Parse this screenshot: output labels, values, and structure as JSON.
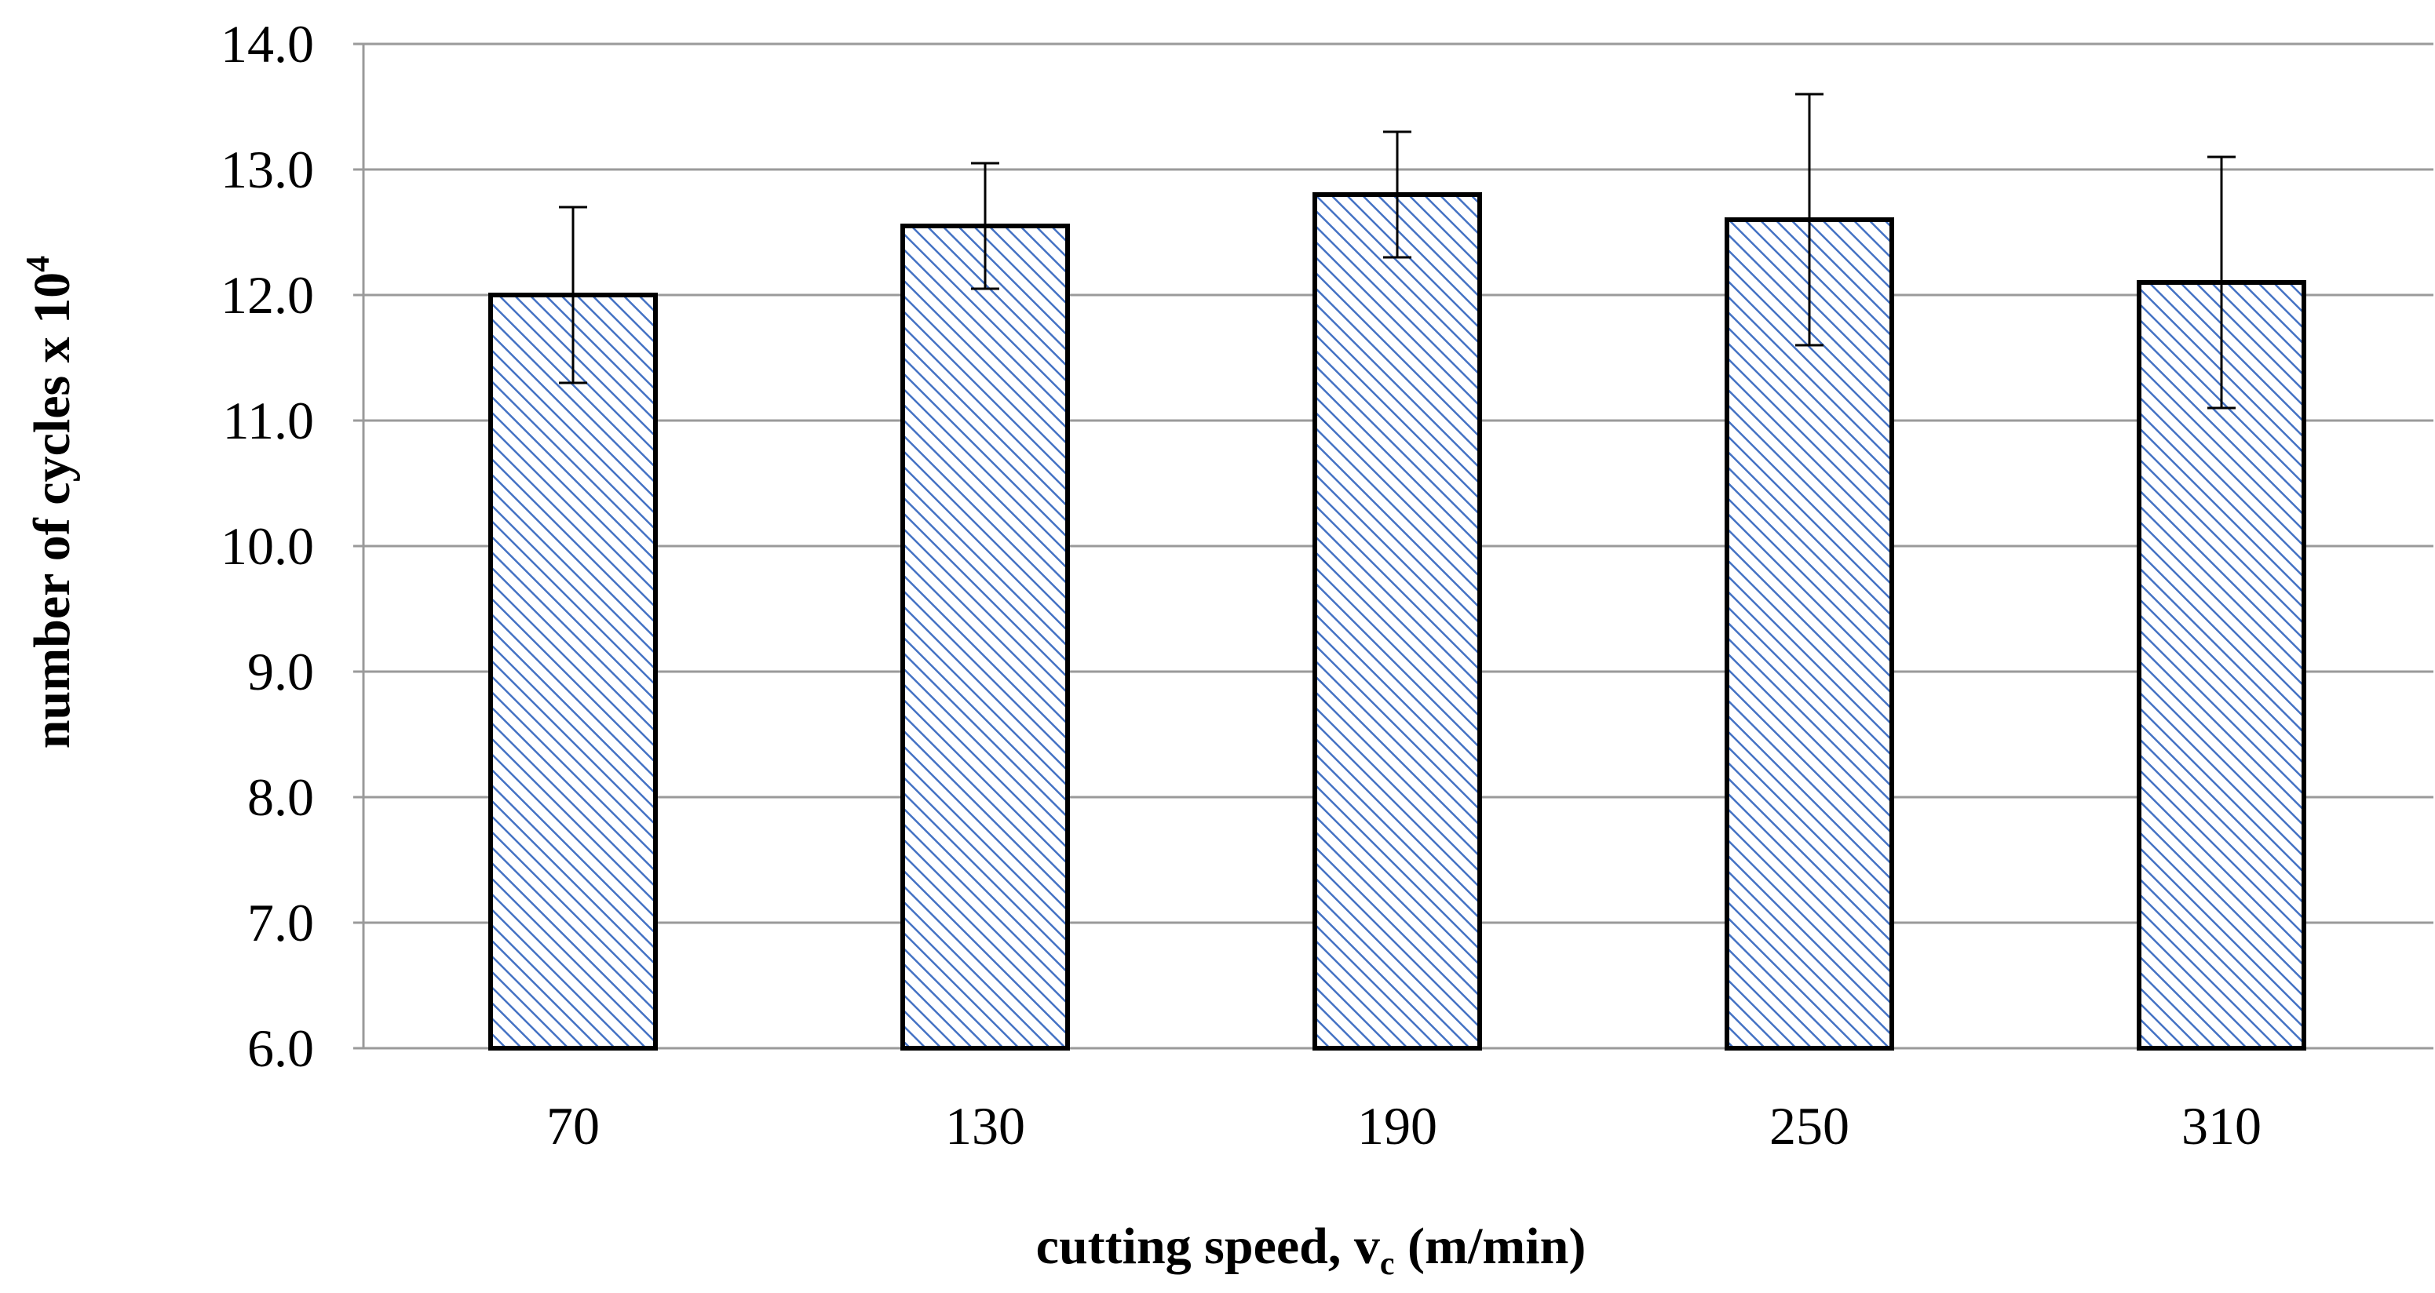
{
  "chart_data": {
    "type": "bar",
    "categories": [
      "70",
      "130",
      "190",
      "250",
      "310"
    ],
    "values": [
      12.0,
      12.55,
      12.8,
      12.6,
      12.1
    ],
    "error_low": [
      11.3,
      12.05,
      12.3,
      11.6,
      11.1
    ],
    "error_high": [
      12.7,
      13.05,
      13.3,
      13.6,
      13.1
    ],
    "title": "",
    "xlabel": "cutting speed, v",
    "xlabel_subscript": "c",
    "xlabel_suffix": " (m/min)",
    "ylabel": "number of cycles  x 10",
    "ylabel_superscript": "4",
    "ylim": [
      6.0,
      14.0
    ],
    "yticks": [
      "6.0",
      "7.0",
      "8.0",
      "9.0",
      "10.0",
      "11.0",
      "12.0",
      "13.0",
      "14.0"
    ],
    "grid": true,
    "bar_color": "#4472c4"
  }
}
